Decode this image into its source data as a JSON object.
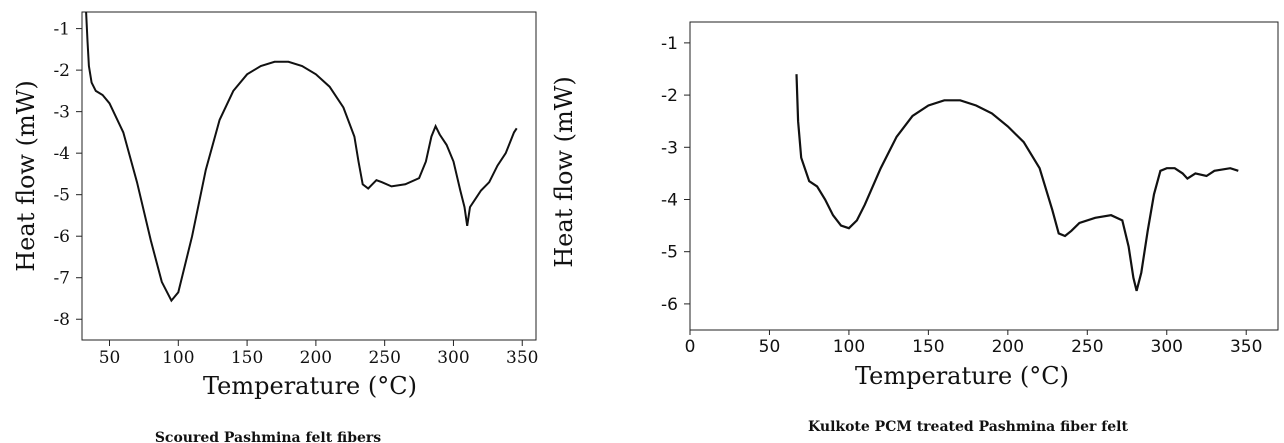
{
  "chart_data": [
    {
      "type": "line",
      "caption": "Scoured Pashmina felt fibers",
      "xlabel": "Temperature (°C)",
      "ylabel": "Heat flow (mW)",
      "xlim": [
        30,
        360
      ],
      "ylim": [
        -8.5,
        -0.6
      ],
      "xticks": [
        50,
        100,
        150,
        200,
        250,
        300,
        350
      ],
      "yticks": [
        -1,
        -2,
        -3,
        -4,
        -5,
        -6,
        -7,
        -8
      ],
      "grid": false,
      "series": [
        {
          "points": [
            [
              33,
              -0.6
            ],
            [
              34,
              -1.3
            ],
            [
              35,
              -1.9
            ],
            [
              37,
              -2.3
            ],
            [
              40,
              -2.5
            ],
            [
              45,
              -2.6
            ],
            [
              50,
              -2.8
            ],
            [
              60,
              -3.5
            ],
            [
              70,
              -4.7
            ],
            [
              80,
              -6.1
            ],
            [
              88,
              -7.1
            ],
            [
              95,
              -7.55
            ],
            [
              100,
              -7.35
            ],
            [
              110,
              -6.0
            ],
            [
              120,
              -4.4
            ],
            [
              130,
              -3.2
            ],
            [
              140,
              -2.5
            ],
            [
              150,
              -2.1
            ],
            [
              160,
              -1.9
            ],
            [
              170,
              -1.8
            ],
            [
              180,
              -1.8
            ],
            [
              190,
              -1.9
            ],
            [
              200,
              -2.1
            ],
            [
              210,
              -2.4
            ],
            [
              220,
              -2.9
            ],
            [
              228,
              -3.6
            ],
            [
              231,
              -4.2
            ],
            [
              234,
              -4.75
            ],
            [
              238,
              -4.85
            ],
            [
              241,
              -4.75
            ],
            [
              244,
              -4.65
            ],
            [
              248,
              -4.7
            ],
            [
              255,
              -4.8
            ],
            [
              265,
              -4.75
            ],
            [
              275,
              -4.6
            ],
            [
              280,
              -4.2
            ],
            [
              284,
              -3.6
            ],
            [
              287,
              -3.35
            ],
            [
              290,
              -3.55
            ],
            [
              295,
              -3.8
            ],
            [
              300,
              -4.2
            ],
            [
              305,
              -4.9
            ],
            [
              308,
              -5.3
            ],
            [
              310,
              -5.75
            ],
            [
              312,
              -5.3
            ],
            [
              316,
              -5.1
            ],
            [
              320,
              -4.9
            ],
            [
              326,
              -4.7
            ],
            [
              332,
              -4.3
            ],
            [
              338,
              -4.0
            ],
            [
              344,
              -3.5
            ],
            [
              346,
              -3.4
            ]
          ]
        }
      ]
    },
    {
      "type": "line",
      "caption": "Kulkote PCM treated Pashmina fiber felt",
      "xlabel": "Temperature (°C)",
      "ylabel": "Heat flow (mW)",
      "xlim": [
        0,
        370
      ],
      "ylim": [
        -6.5,
        -0.6
      ],
      "xticks": [
        0,
        50,
        100,
        150,
        200,
        250,
        300,
        350
      ],
      "yticks": [
        -1,
        -2,
        -3,
        -4,
        -5,
        -6
      ],
      "grid": false,
      "series": [
        {
          "points": [
            [
              67,
              -1.6
            ],
            [
              68,
              -2.5
            ],
            [
              70,
              -3.2
            ],
            [
              75,
              -3.65
            ],
            [
              80,
              -3.75
            ],
            [
              85,
              -4.0
            ],
            [
              90,
              -4.3
            ],
            [
              95,
              -4.5
            ],
            [
              100,
              -4.55
            ],
            [
              105,
              -4.4
            ],
            [
              110,
              -4.1
            ],
            [
              120,
              -3.4
            ],
            [
              130,
              -2.8
            ],
            [
              140,
              -2.4
            ],
            [
              150,
              -2.2
            ],
            [
              160,
              -2.1
            ],
            [
              170,
              -2.1
            ],
            [
              180,
              -2.2
            ],
            [
              190,
              -2.35
            ],
            [
              200,
              -2.6
            ],
            [
              210,
              -2.9
            ],
            [
              220,
              -3.4
            ],
            [
              228,
              -4.2
            ],
            [
              232,
              -4.65
            ],
            [
              236,
              -4.7
            ],
            [
              240,
              -4.6
            ],
            [
              245,
              -4.45
            ],
            [
              255,
              -4.35
            ],
            [
              265,
              -4.3
            ],
            [
              272,
              -4.4
            ],
            [
              276,
              -4.9
            ],
            [
              279,
              -5.5
            ],
            [
              281,
              -5.75
            ],
            [
              284,
              -5.4
            ],
            [
              288,
              -4.6
            ],
            [
              292,
              -3.9
            ],
            [
              296,
              -3.45
            ],
            [
              300,
              -3.4
            ],
            [
              305,
              -3.4
            ],
            [
              310,
              -3.5
            ],
            [
              313,
              -3.6
            ],
            [
              318,
              -3.5
            ],
            [
              325,
              -3.55
            ],
            [
              330,
              -3.45
            ],
            [
              340,
              -3.4
            ],
            [
              345,
              -3.45
            ]
          ]
        }
      ]
    }
  ]
}
